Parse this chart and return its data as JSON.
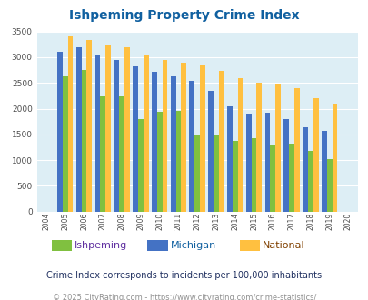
{
  "title": "Ishpeming Property Crime Index",
  "years": [
    2004,
    2005,
    2006,
    2007,
    2008,
    2009,
    2010,
    2011,
    2012,
    2013,
    2014,
    2015,
    2016,
    2017,
    2018,
    2019,
    2020
  ],
  "ishpeming": [
    null,
    2620,
    2760,
    2240,
    2240,
    1800,
    1930,
    1960,
    1490,
    1500,
    1370,
    1420,
    1310,
    1320,
    1170,
    1020,
    null
  ],
  "michigan": [
    null,
    3100,
    3200,
    3050,
    2940,
    2830,
    2720,
    2620,
    2540,
    2340,
    2050,
    1900,
    1920,
    1800,
    1640,
    1570,
    null
  ],
  "national": [
    null,
    3410,
    3330,
    3250,
    3200,
    3040,
    2950,
    2900,
    2860,
    2730,
    2600,
    2500,
    2480,
    2390,
    2200,
    2100,
    null
  ],
  "colors": {
    "ishpeming": "#80c040",
    "michigan": "#4472c4",
    "national": "#ffc040"
  },
  "ylim": [
    0,
    3500
  ],
  "yticks": [
    0,
    500,
    1000,
    1500,
    2000,
    2500,
    3000,
    3500
  ],
  "plot_bg": "#ddeef5",
  "subtitle": "Crime Index corresponds to incidents per 100,000 inhabitants",
  "footer": "© 2025 CityRating.com - https://www.cityrating.com/crime-statistics/",
  "title_color": "#1060a0",
  "subtitle_color": "#203060",
  "footer_color": "#909090",
  "legend_labels": [
    "Ishpeming",
    "Michigan",
    "National"
  ],
  "legend_label_colors": [
    "#6030a0",
    "#1060a0",
    "#804000"
  ]
}
